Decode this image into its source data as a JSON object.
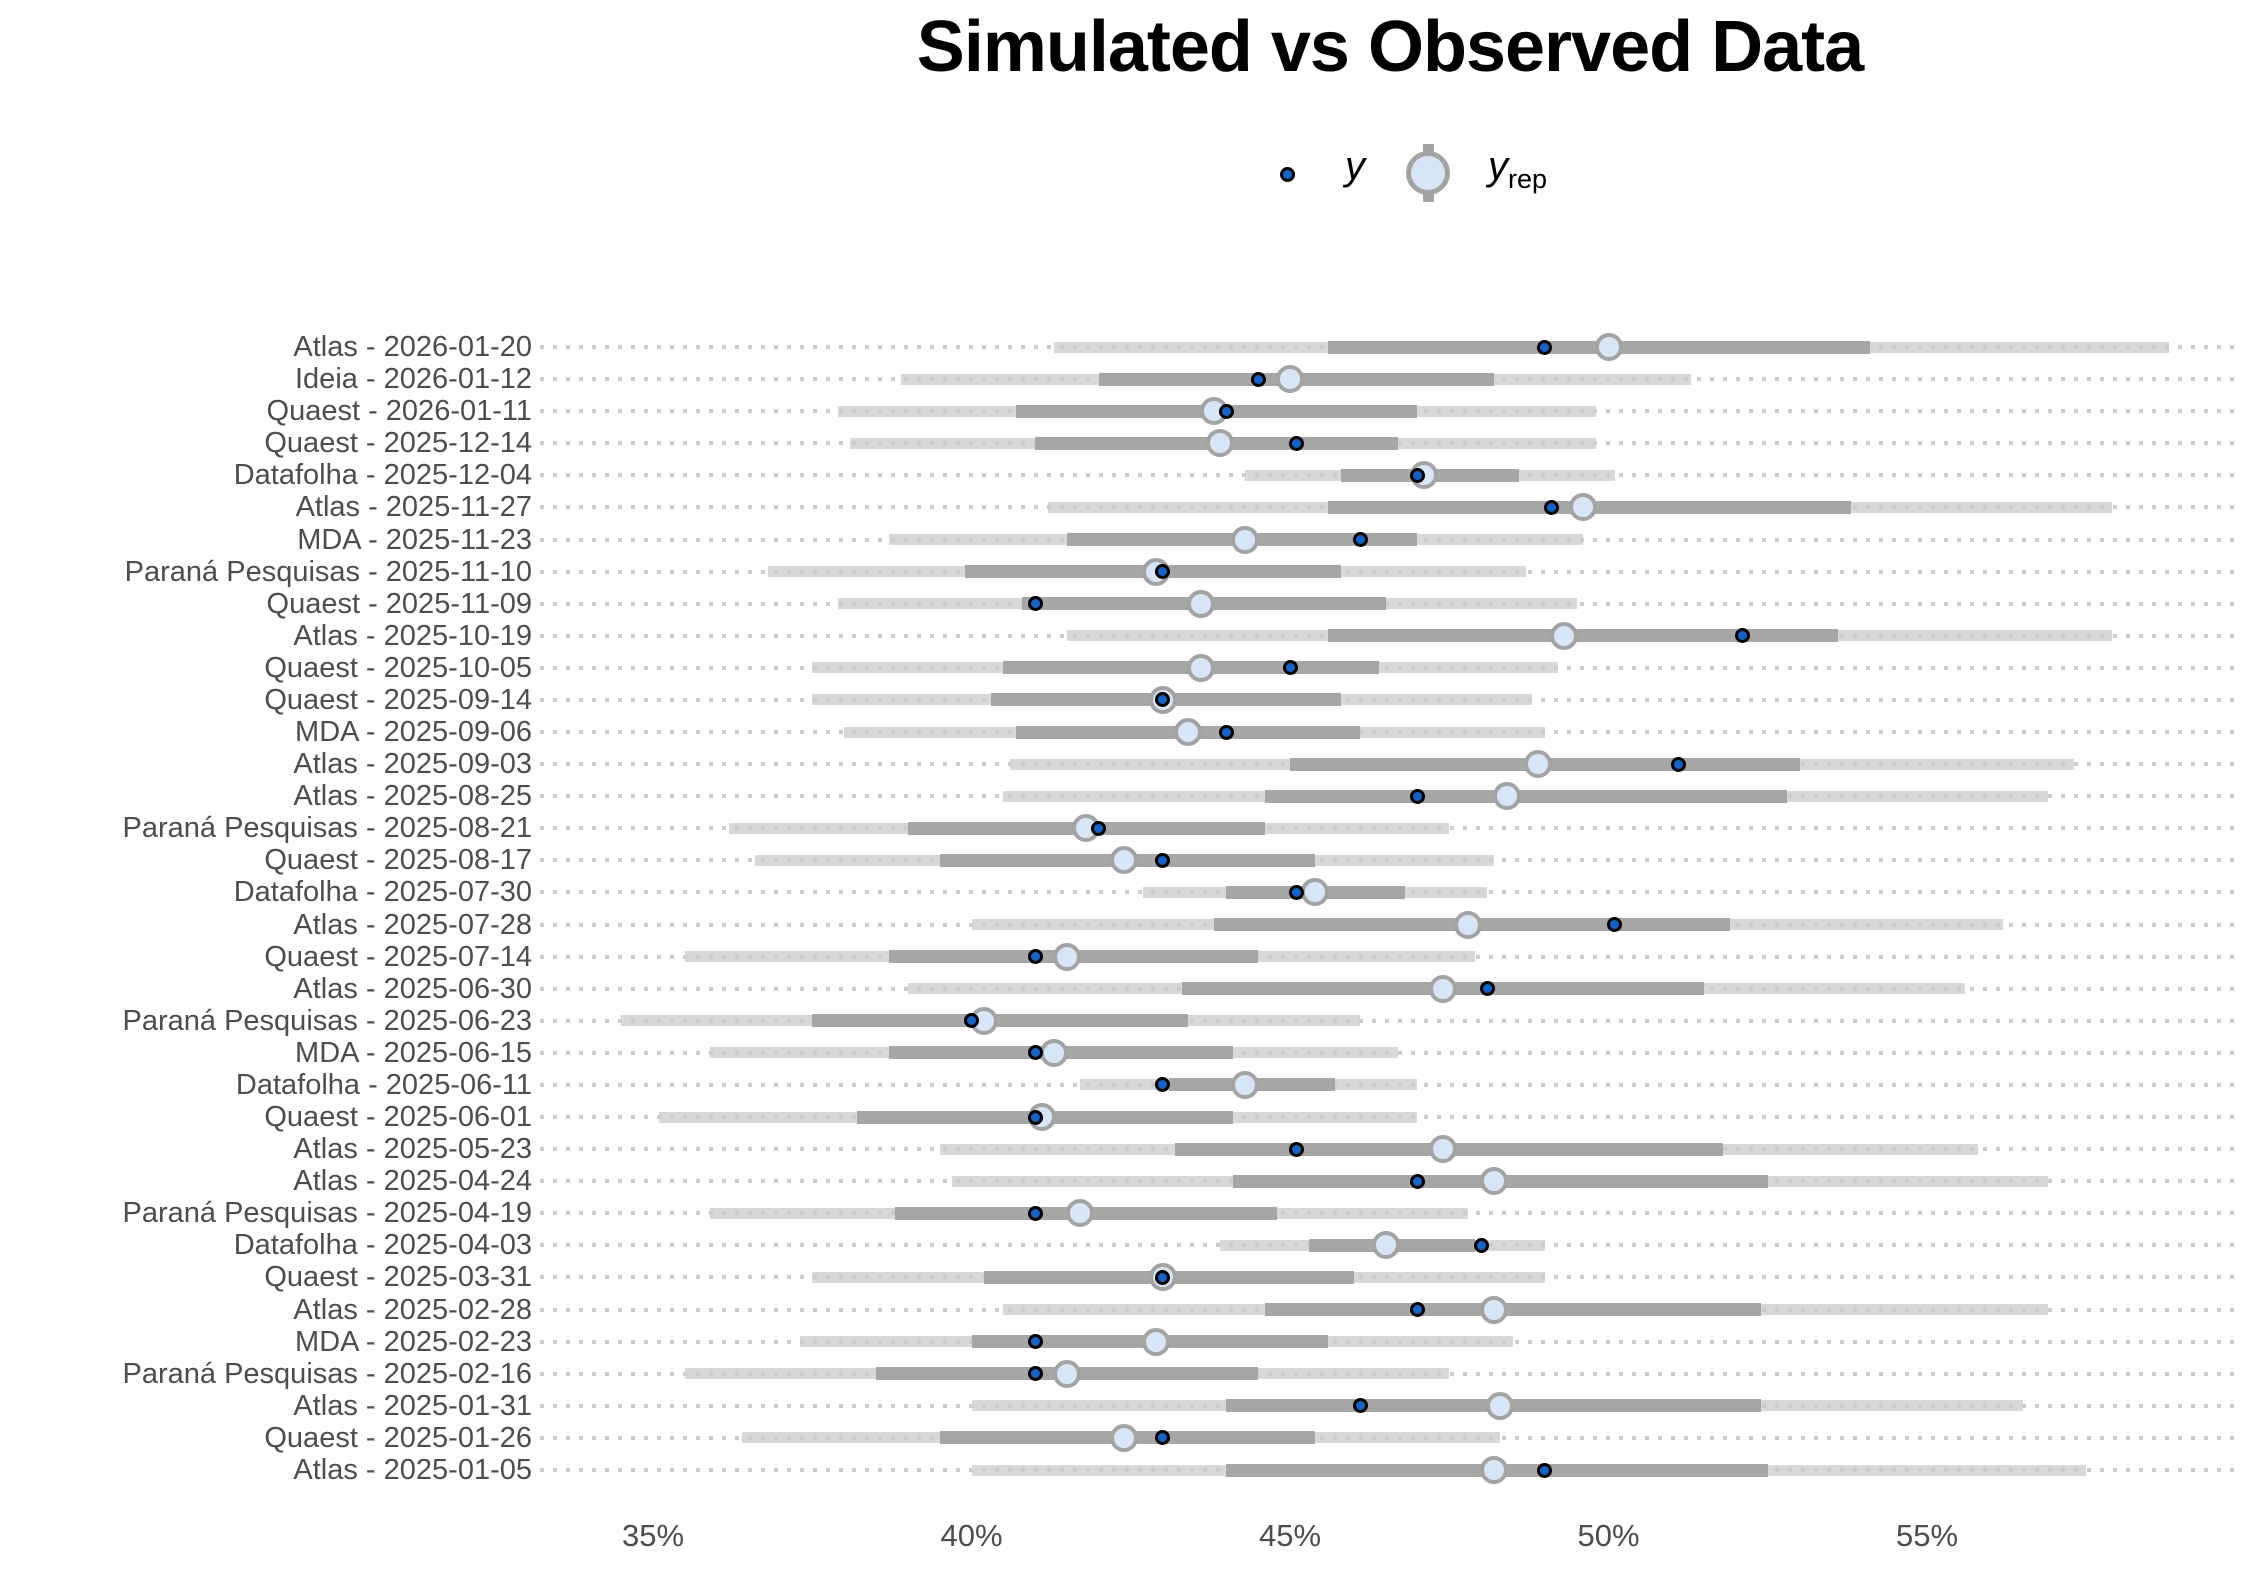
{
  "title": "Simulated vs Observed Data",
  "legend": {
    "y_label": "y",
    "yrep_base": "y",
    "yrep_sub": "rep"
  },
  "colors": {
    "observed_point": "#1565c8",
    "observed_point_ring": "#000000",
    "yrep_median_fill": "#d7e6f7",
    "yrep_median_ring": "#a3a3a3",
    "inner_interval": "#a6a6a6",
    "outer_interval": "#d8d8d8",
    "grid_dot": "#cbcbcb",
    "axis_text": "#4d4d4d"
  },
  "chart_data": {
    "type": "scatter",
    "title": "Simulated vs Observed Data",
    "xlabel": "",
    "ylabel": "",
    "xlim": [
      33.2,
      60.2
    ],
    "x_tick_values": [
      35,
      40,
      45,
      50,
      55
    ],
    "x_tick_labels": [
      "35%",
      "40%",
      "45%",
      "50%",
      "55%"
    ],
    "grid": "dotted-horizontal-row-guides",
    "legend_position": "top-center",
    "legend_entries": [
      "y",
      "y_rep"
    ],
    "categories": [
      "Atlas - 2026-01-20",
      "Ideia - 2026-01-12",
      "Quaest - 2026-01-11",
      "Quaest - 2025-12-14",
      "Datafolha - 2025-12-04",
      "Atlas - 2025-11-27",
      "MDA - 2025-11-23",
      "Paraná Pesquisas - 2025-11-10",
      "Quaest - 2025-11-09",
      "Atlas - 2025-10-19",
      "Quaest - 2025-10-05",
      "Quaest - 2025-09-14",
      "MDA - 2025-09-06",
      "Atlas - 2025-09-03",
      "Atlas - 2025-08-25",
      "Paraná Pesquisas - 2025-08-21",
      "Quaest - 2025-08-17",
      "Datafolha - 2025-07-30",
      "Atlas - 2025-07-28",
      "Quaest - 2025-07-14",
      "Atlas - 2025-06-30",
      "Paraná Pesquisas - 2025-06-23",
      "MDA - 2025-06-15",
      "Datafolha - 2025-06-11",
      "Quaest - 2025-06-01",
      "Atlas - 2025-05-23",
      "Atlas - 2025-04-24",
      "Paraná Pesquisas - 2025-04-19",
      "Datafolha - 2025-04-03",
      "Quaest - 2025-03-31",
      "Atlas - 2025-02-28",
      "MDA - 2025-02-23",
      "Paraná Pesquisas - 2025-02-16",
      "Atlas - 2025-01-31",
      "Quaest - 2025-01-26",
      "Atlas - 2025-01-05"
    ],
    "series": [
      {
        "name": "y",
        "role": "observed-point",
        "values": [
          49.0,
          44.5,
          44.0,
          45.1,
          47.0,
          49.1,
          46.1,
          43.0,
          41.0,
          52.1,
          45.0,
          43.0,
          44.0,
          51.1,
          47.0,
          42.0,
          43.0,
          45.1,
          50.1,
          41.0,
          48.1,
          40.0,
          41.0,
          43.0,
          41.0,
          45.1,
          47.0,
          41.0,
          48.0,
          43.0,
          47.0,
          41.0,
          41.0,
          46.1,
          43.0,
          49.0
        ]
      },
      {
        "name": "y_rep_median",
        "role": "simulated-median-point",
        "values": [
          50.0,
          45.0,
          43.8,
          43.9,
          47.1,
          49.6,
          44.3,
          42.9,
          43.6,
          49.3,
          43.6,
          43.0,
          43.4,
          48.9,
          48.4,
          41.8,
          42.4,
          45.4,
          47.8,
          41.5,
          47.4,
          40.2,
          41.3,
          44.3,
          41.1,
          47.4,
          48.2,
          41.7,
          46.5,
          43.0,
          48.2,
          42.9,
          41.5,
          48.3,
          42.4,
          48.2
        ]
      },
      {
        "name": "y_rep_inner_interval",
        "role": "simulated-50pct-interval",
        "values": [
          [
            45.6,
            54.1
          ],
          [
            42.0,
            48.2
          ],
          [
            40.7,
            47.0
          ],
          [
            41.0,
            46.7
          ],
          [
            45.8,
            48.6
          ],
          [
            45.6,
            53.8
          ],
          [
            41.5,
            47.0
          ],
          [
            39.9,
            45.8
          ],
          [
            40.8,
            46.5
          ],
          [
            45.6,
            53.6
          ],
          [
            40.5,
            46.4
          ],
          [
            40.3,
            45.8
          ],
          [
            40.7,
            46.1
          ],
          [
            45.0,
            53.0
          ],
          [
            44.6,
            52.8
          ],
          [
            39.0,
            44.6
          ],
          [
            39.5,
            45.4
          ],
          [
            44.0,
            46.8
          ],
          [
            43.8,
            51.9
          ],
          [
            38.7,
            44.5
          ],
          [
            43.3,
            51.5
          ],
          [
            37.5,
            43.4
          ],
          [
            38.7,
            44.1
          ],
          [
            43.1,
            45.7
          ],
          [
            38.2,
            44.1
          ],
          [
            43.2,
            51.8
          ],
          [
            44.1,
            52.5
          ],
          [
            38.8,
            44.8
          ],
          [
            45.3,
            47.9
          ],
          [
            40.2,
            46.0
          ],
          [
            44.6,
            52.4
          ],
          [
            40.0,
            45.6
          ],
          [
            38.5,
            44.5
          ],
          [
            44.0,
            52.4
          ],
          [
            39.5,
            45.4
          ],
          [
            44.0,
            52.5
          ]
        ]
      },
      {
        "name": "y_rep_outer_interval",
        "role": "simulated-outer-interval",
        "values": [
          [
            41.3,
            58.8
          ],
          [
            38.9,
            51.3
          ],
          [
            37.9,
            49.8
          ],
          [
            38.1,
            49.8
          ],
          [
            44.3,
            50.1
          ],
          [
            41.2,
            57.9
          ],
          [
            38.7,
            49.6
          ],
          [
            36.8,
            48.7
          ],
          [
            37.9,
            49.5
          ],
          [
            41.5,
            57.9
          ],
          [
            37.5,
            49.2
          ],
          [
            37.5,
            48.8
          ],
          [
            38.0,
            49.0
          ],
          [
            40.6,
            57.3
          ],
          [
            40.5,
            56.9
          ],
          [
            36.2,
            47.5
          ],
          [
            36.6,
            48.2
          ],
          [
            42.7,
            48.1
          ],
          [
            40.0,
            56.2
          ],
          [
            35.5,
            47.9
          ],
          [
            39.0,
            55.6
          ],
          [
            34.5,
            46.1
          ],
          [
            35.9,
            46.7
          ],
          [
            41.7,
            47.0
          ],
          [
            35.1,
            47.0
          ],
          [
            39.5,
            55.8
          ],
          [
            39.7,
            56.9
          ],
          [
            35.9,
            47.8
          ],
          [
            43.9,
            49.0
          ],
          [
            37.5,
            49.0
          ],
          [
            40.5,
            56.9
          ],
          [
            37.3,
            48.5
          ],
          [
            35.5,
            47.5
          ],
          [
            40.0,
            56.5
          ],
          [
            36.4,
            48.3
          ],
          [
            40.0,
            57.5
          ]
        ]
      }
    ]
  }
}
